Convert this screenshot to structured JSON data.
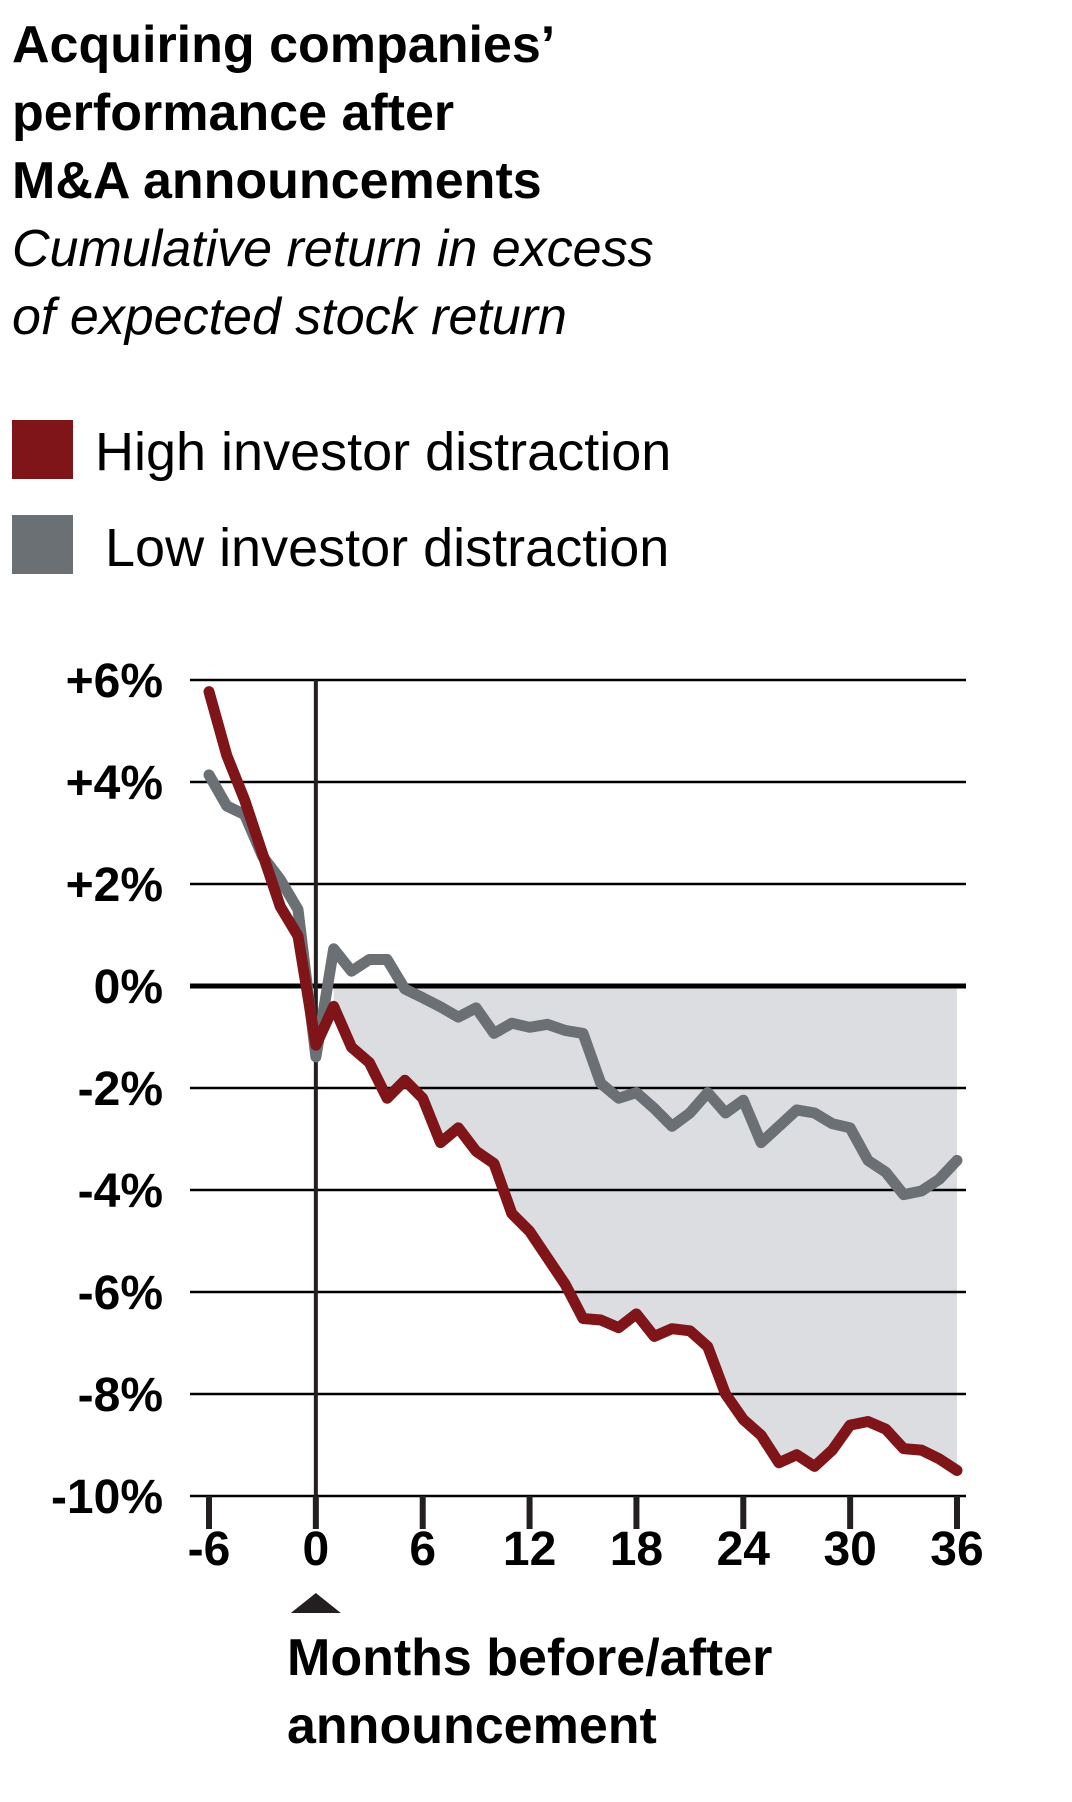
{
  "chart_data": {
    "type": "line",
    "title_lines": [
      "Acquiring companies’",
      "performance after",
      "M&A announcements"
    ],
    "subtitle_lines": [
      "Cumulative return in excess",
      "of expected stock return"
    ],
    "xlabel_lines": [
      "Months before/after",
      "announcement"
    ],
    "ylabel": "",
    "xlim": [
      -6,
      36
    ],
    "ylim": [
      -10,
      6
    ],
    "x_ticks": [
      -6,
      0,
      6,
      12,
      18,
      24,
      30,
      36
    ],
    "x_tick_labels": [
      "-6",
      "0",
      "6",
      "12",
      "18",
      "24",
      "30",
      "36"
    ],
    "y_ticks": [
      6,
      4,
      2,
      0,
      -2,
      -4,
      -6,
      -8,
      -10
    ],
    "y_tick_labels": [
      "+6%",
      "+4%",
      "+2%",
      "0%",
      "-2%",
      "-4%",
      "-6%",
      "-8%",
      "-10%"
    ],
    "grid": true,
    "legend_placement": "top-left",
    "announcement_marker": 0,
    "shaded_gap": {
      "from_x": 1,
      "to_x": 36,
      "color": "#dcdde0"
    },
    "x": [
      -6,
      -5,
      -4,
      -3,
      -2,
      -1,
      0,
      1,
      2,
      3,
      4,
      5,
      6,
      7,
      8,
      9,
      10,
      11,
      12,
      13,
      14,
      15,
      16,
      17,
      18,
      19,
      20,
      21,
      22,
      23,
      24,
      25,
      26,
      27,
      28,
      29,
      30,
      31,
      32,
      33,
      34,
      35,
      36
    ],
    "series": [
      {
        "name": "High investor distraction",
        "color": "#7f1518",
        "values": [
          5.77,
          4.52,
          3.65,
          2.6,
          1.56,
          0.98,
          -1.16,
          -0.4,
          -1.2,
          -1.5,
          -2.2,
          -1.85,
          -2.2,
          -3.07,
          -2.78,
          -3.24,
          -3.48,
          -4.46,
          -4.81,
          -5.33,
          -5.85,
          -6.52,
          -6.55,
          -6.7,
          -6.43,
          -6.87,
          -6.72,
          -6.76,
          -7.07,
          -8.0,
          -8.5,
          -8.81,
          -9.35,
          -9.19,
          -9.42,
          -9.1,
          -8.61,
          -8.54,
          -8.69,
          -9.07,
          -9.1,
          -9.27,
          -9.5
        ]
      },
      {
        "name": "Low investor distraction",
        "color": "#6b7075",
        "values": [
          4.14,
          3.53,
          3.36,
          2.55,
          2.09,
          1.5,
          -1.39,
          0.73,
          0.29,
          0.52,
          0.52,
          -0.06,
          -0.23,
          -0.41,
          -0.61,
          -0.43,
          -0.93,
          -0.73,
          -0.81,
          -0.75,
          -0.87,
          -0.93,
          -1.91,
          -2.2,
          -2.09,
          -2.4,
          -2.75,
          -2.49,
          -2.09,
          -2.49,
          -2.24,
          -3.07,
          -2.75,
          -2.43,
          -2.49,
          -2.7,
          -2.78,
          -3.42,
          -3.65,
          -4.09,
          -4.02,
          -3.79,
          -3.42
        ]
      }
    ]
  }
}
